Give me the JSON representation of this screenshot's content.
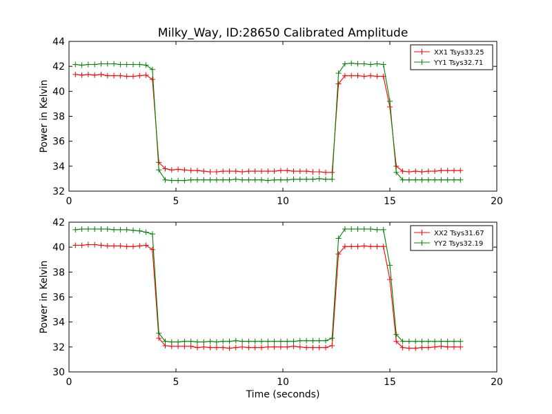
{
  "title": "Milky_Way, ID:28650 Calibrated Amplitude",
  "chart_data": [
    {
      "type": "line",
      "ylabel": "Power in Kelvin",
      "xlabel": "",
      "xlim": [
        0,
        20
      ],
      "ylim": [
        32,
        44
      ],
      "xticks": [
        0,
        5,
        10,
        15,
        20
      ],
      "yticks": [
        32,
        34,
        36,
        38,
        40,
        42,
        44
      ],
      "grid": false,
      "legend_position": "top-right",
      "x": [
        0.3,
        0.6,
        0.9,
        1.2,
        1.5,
        1.8,
        2.1,
        2.4,
        2.7,
        3.0,
        3.3,
        3.6,
        3.9,
        4.2,
        4.5,
        4.8,
        5.1,
        5.4,
        5.7,
        6.0,
        6.3,
        6.6,
        6.9,
        7.2,
        7.5,
        7.8,
        8.1,
        8.4,
        8.7,
        9.0,
        9.3,
        9.6,
        9.9,
        10.2,
        10.5,
        10.8,
        11.1,
        11.4,
        11.7,
        12.0,
        12.3,
        12.6,
        12.9,
        13.2,
        13.5,
        13.8,
        14.1,
        14.4,
        14.7,
        15.0,
        15.3,
        15.6,
        15.9,
        16.2,
        16.5,
        16.8,
        17.1,
        17.4,
        17.7,
        18.0,
        18.3
      ],
      "series": [
        {
          "name": "XX1 Tsys33.25",
          "color": "#ff0000",
          "values": [
            41.35,
            41.3,
            41.35,
            41.3,
            41.35,
            41.25,
            41.25,
            41.25,
            41.2,
            41.2,
            41.25,
            41.3,
            40.95,
            34.3,
            33.8,
            33.7,
            33.75,
            33.7,
            33.65,
            33.65,
            33.6,
            33.55,
            33.55,
            33.6,
            33.6,
            33.6,
            33.55,
            33.6,
            33.6,
            33.6,
            33.6,
            33.6,
            33.65,
            33.65,
            33.6,
            33.6,
            33.6,
            33.55,
            33.55,
            33.5,
            33.5,
            40.6,
            41.25,
            41.25,
            41.25,
            41.2,
            41.25,
            41.2,
            41.2,
            38.75,
            34.0,
            33.6,
            33.55,
            33.6,
            33.55,
            33.6,
            33.6,
            33.65,
            33.65,
            33.65,
            33.65
          ]
        },
        {
          "name": "YY1 Tsys32.71",
          "color": "#008000",
          "values": [
            42.15,
            42.1,
            42.15,
            42.15,
            42.2,
            42.2,
            42.2,
            42.15,
            42.15,
            42.15,
            42.15,
            42.1,
            41.75,
            33.7,
            32.9,
            32.85,
            32.85,
            32.85,
            32.9,
            32.9,
            32.9,
            32.9,
            32.9,
            32.9,
            32.9,
            32.95,
            32.9,
            32.9,
            32.9,
            32.9,
            32.85,
            32.9,
            32.9,
            32.9,
            32.95,
            32.95,
            32.95,
            32.95,
            33.0,
            32.95,
            32.95,
            41.45,
            42.2,
            42.25,
            42.2,
            42.2,
            42.15,
            42.2,
            42.15,
            39.2,
            33.5,
            32.9,
            32.9,
            32.9,
            32.9,
            32.9,
            32.9,
            32.9,
            32.9,
            32.9,
            32.9
          ]
        }
      ]
    },
    {
      "type": "line",
      "ylabel": "Power in Kelvin",
      "xlabel": "Time (seconds)",
      "xlim": [
        0,
        20
      ],
      "ylim": [
        30,
        42
      ],
      "xticks": [
        0,
        5,
        10,
        15,
        20
      ],
      "yticks": [
        30,
        32,
        34,
        36,
        38,
        40,
        42
      ],
      "grid": false,
      "legend_position": "top-right",
      "x": [
        0.3,
        0.6,
        0.9,
        1.2,
        1.5,
        1.8,
        2.1,
        2.4,
        2.7,
        3.0,
        3.3,
        3.6,
        3.9,
        4.2,
        4.5,
        4.8,
        5.1,
        5.4,
        5.7,
        6.0,
        6.3,
        6.6,
        6.9,
        7.2,
        7.5,
        7.8,
        8.1,
        8.4,
        8.7,
        9.0,
        9.3,
        9.6,
        9.9,
        10.2,
        10.5,
        10.8,
        11.1,
        11.4,
        11.7,
        12.0,
        12.3,
        12.6,
        12.9,
        13.2,
        13.5,
        13.8,
        14.1,
        14.4,
        14.7,
        15.0,
        15.3,
        15.6,
        15.9,
        16.2,
        16.5,
        16.8,
        17.1,
        17.4,
        17.7,
        18.0,
        18.3
      ],
      "series": [
        {
          "name": "XX2 Tsys31.67",
          "color": "#ff0000",
          "values": [
            40.15,
            40.15,
            40.2,
            40.2,
            40.15,
            40.1,
            40.1,
            40.1,
            40.05,
            40.05,
            40.1,
            40.15,
            39.8,
            32.7,
            32.1,
            32.05,
            32.05,
            32.05,
            32.05,
            31.95,
            32.0,
            31.95,
            31.95,
            31.95,
            31.9,
            31.95,
            32.0,
            31.95,
            31.95,
            31.95,
            32.0,
            32.0,
            32.0,
            32.0,
            32.05,
            32.0,
            31.95,
            31.95,
            31.95,
            31.95,
            32.1,
            39.45,
            40.05,
            40.05,
            40.05,
            40.1,
            40.05,
            40.05,
            40.05,
            37.4,
            32.45,
            31.95,
            31.9,
            31.9,
            31.95,
            31.95,
            32.0,
            32.05,
            32.0,
            32.0,
            32.0
          ]
        },
        {
          "name": "YY2 Tsys32.19",
          "color": "#008000",
          "values": [
            41.4,
            41.45,
            41.45,
            41.45,
            41.45,
            41.45,
            41.4,
            41.4,
            41.4,
            41.35,
            41.3,
            41.2,
            41.05,
            33.1,
            32.45,
            32.4,
            32.4,
            32.45,
            32.45,
            32.4,
            32.4,
            32.45,
            32.4,
            32.45,
            32.45,
            32.5,
            32.45,
            32.45,
            32.45,
            32.45,
            32.45,
            32.45,
            32.45,
            32.45,
            32.45,
            32.5,
            32.5,
            32.5,
            32.5,
            32.5,
            32.7,
            40.7,
            41.45,
            41.45,
            41.45,
            41.45,
            41.45,
            41.4,
            41.4,
            38.55,
            33.0,
            32.45,
            32.45,
            32.45,
            32.45,
            32.45,
            32.45,
            32.45,
            32.45,
            32.45,
            32.45
          ]
        }
      ]
    }
  ]
}
